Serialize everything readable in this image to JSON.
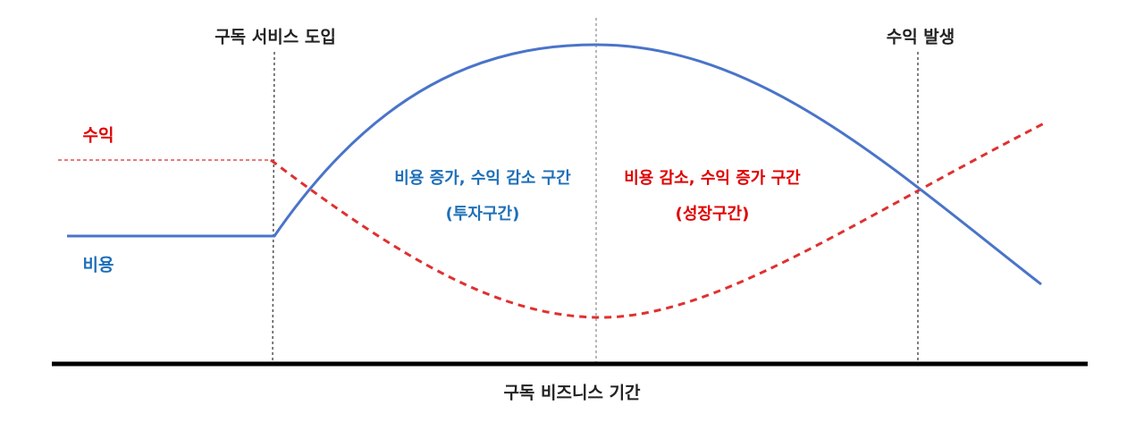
{
  "markers": {
    "start": "구독 서비스 도입",
    "profit": "수익 발생"
  },
  "legend": {
    "revenue": "수익",
    "cost": "비용"
  },
  "zones": {
    "investment": {
      "title": "비용 증가, 수익 감소 구간",
      "label": "(투자구간)"
    },
    "growth": {
      "title": "비용 감소, 수익 증가 구간",
      "label": "(성장구간)"
    }
  },
  "axis_label": "구독 비즈니스 기간"
}
